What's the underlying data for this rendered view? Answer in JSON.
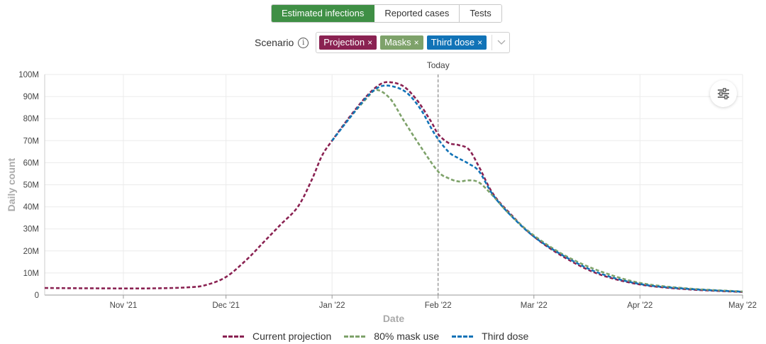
{
  "tabs": [
    {
      "label": "Estimated infections",
      "active": true
    },
    {
      "label": "Reported cases",
      "active": false
    },
    {
      "label": "Tests",
      "active": false
    }
  ],
  "scenario": {
    "label": "Scenario",
    "info_icon": "info-icon",
    "chips": [
      {
        "label": "Projection",
        "remove": "×",
        "color": "#8a2252"
      },
      {
        "label": "Masks",
        "remove": "×",
        "color": "#7ea26a"
      },
      {
        "label": "Third dose",
        "remove": "×",
        "color": "#1173b7"
      }
    ],
    "dropdown_icon": "chevron-down-icon"
  },
  "settings_icon": "sliders-icon",
  "chart_data": {
    "type": "line",
    "annotation": "Today",
    "today": "2022-02-01",
    "xlabel": "Date",
    "ylabel": "Daily count",
    "xlim": [
      "2021-10-09",
      "2022-05-01"
    ],
    "ylim": [
      0,
      100000000
    ],
    "x_ticks": [
      {
        "date": "2021-11-01",
        "label": "Nov '21"
      },
      {
        "date": "2021-12-01",
        "label": "Dec '21"
      },
      {
        "date": "2022-01-01",
        "label": "Jan '22"
      },
      {
        "date": "2022-02-01",
        "label": "Feb '22"
      },
      {
        "date": "2022-03-01",
        "label": "Mar '22"
      },
      {
        "date": "2022-04-01",
        "label": "Apr '22"
      },
      {
        "date": "2022-05-01",
        "label": "May '22"
      }
    ],
    "y_ticks": [
      {
        "value": 0,
        "label": "0"
      },
      {
        "value": 10000000,
        "label": "10M"
      },
      {
        "value": 20000000,
        "label": "20M"
      },
      {
        "value": 30000000,
        "label": "30M"
      },
      {
        "value": 40000000,
        "label": "40M"
      },
      {
        "value": 50000000,
        "label": "50M"
      },
      {
        "value": 60000000,
        "label": "60M"
      },
      {
        "value": 70000000,
        "label": "70M"
      },
      {
        "value": 80000000,
        "label": "80M"
      },
      {
        "value": 90000000,
        "label": "90M"
      },
      {
        "value": 100000000,
        "label": "100M"
      }
    ],
    "grid": true,
    "legend_position": "bottom",
    "series": [
      {
        "name": "Current projection",
        "color": "#8a2252",
        "dash": "dashed",
        "points": [
          [
            "2021-10-09",
            3200000
          ],
          [
            "2021-10-20",
            3100000
          ],
          [
            "2021-11-01",
            3000000
          ],
          [
            "2021-11-10",
            3050000
          ],
          [
            "2021-11-20",
            3500000
          ],
          [
            "2021-11-25",
            4500000
          ],
          [
            "2021-12-01",
            8200000
          ],
          [
            "2021-12-07",
            16000000
          ],
          [
            "2021-12-12",
            24000000
          ],
          [
            "2021-12-17",
            32000000
          ],
          [
            "2021-12-22",
            40000000
          ],
          [
            "2021-12-26",
            52000000
          ],
          [
            "2021-12-29",
            63000000
          ],
          [
            "2022-01-01",
            70000000
          ],
          [
            "2022-01-06",
            80500000
          ],
          [
            "2022-01-11",
            90000000
          ],
          [
            "2022-01-15",
            95500000
          ],
          [
            "2022-01-18",
            96500000
          ],
          [
            "2022-01-22",
            94500000
          ],
          [
            "2022-01-26",
            88000000
          ],
          [
            "2022-01-30",
            78500000
          ],
          [
            "2022-02-01",
            73000000
          ],
          [
            "2022-02-04",
            69000000
          ],
          [
            "2022-02-07",
            68000000
          ],
          [
            "2022-02-10",
            66000000
          ],
          [
            "2022-02-13",
            58000000
          ],
          [
            "2022-02-17",
            46000000
          ],
          [
            "2022-02-22",
            37000000
          ],
          [
            "2022-03-01",
            26500000
          ],
          [
            "2022-03-10",
            17000000
          ],
          [
            "2022-03-20",
            9500000
          ],
          [
            "2022-04-01",
            4800000
          ],
          [
            "2022-04-15",
            2600000
          ],
          [
            "2022-05-01",
            1400000
          ]
        ]
      },
      {
        "name": "80% mask use",
        "color": "#7ea26a",
        "dash": "dashed",
        "points": [
          [
            "2022-01-01",
            70000000
          ],
          [
            "2022-01-06",
            80000000
          ],
          [
            "2022-01-11",
            89000000
          ],
          [
            "2022-01-14",
            93000000
          ],
          [
            "2022-01-18",
            89000000
          ],
          [
            "2022-01-22",
            79000000
          ],
          [
            "2022-01-27",
            67000000
          ],
          [
            "2022-02-01",
            56000000
          ],
          [
            "2022-02-04",
            53000000
          ],
          [
            "2022-02-07",
            51500000
          ],
          [
            "2022-02-10",
            52000000
          ],
          [
            "2022-02-13",
            51000000
          ],
          [
            "2022-02-17",
            45000000
          ],
          [
            "2022-02-22",
            36500000
          ],
          [
            "2022-03-01",
            27000000
          ],
          [
            "2022-03-10",
            18000000
          ],
          [
            "2022-03-20",
            11000000
          ],
          [
            "2022-04-01",
            5500000
          ],
          [
            "2022-04-15",
            3000000
          ],
          [
            "2022-05-01",
            1600000
          ]
        ]
      },
      {
        "name": "Third dose",
        "color": "#1173b7",
        "dash": "dashed",
        "points": [
          [
            "2022-01-01",
            70000000
          ],
          [
            "2022-01-06",
            80000000
          ],
          [
            "2022-01-11",
            89500000
          ],
          [
            "2022-01-15",
            94500000
          ],
          [
            "2022-01-19",
            94500000
          ],
          [
            "2022-01-23",
            91500000
          ],
          [
            "2022-01-27",
            84000000
          ],
          [
            "2022-01-31",
            73000000
          ],
          [
            "2022-02-04",
            65000000
          ],
          [
            "2022-02-07",
            62000000
          ],
          [
            "2022-02-10",
            59500000
          ],
          [
            "2022-02-13",
            56000000
          ],
          [
            "2022-02-17",
            45500000
          ],
          [
            "2022-02-22",
            36500000
          ],
          [
            "2022-03-01",
            26500000
          ],
          [
            "2022-03-10",
            17500000
          ],
          [
            "2022-03-20",
            10000000
          ],
          [
            "2022-04-01",
            5000000
          ],
          [
            "2022-04-15",
            2800000
          ],
          [
            "2022-05-01",
            1500000
          ]
        ]
      }
    ]
  }
}
